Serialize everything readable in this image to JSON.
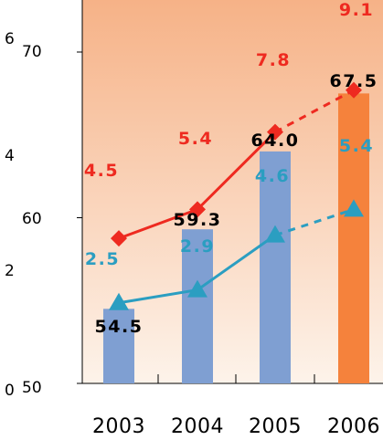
{
  "chart_data": {
    "type": "bar",
    "categories": [
      "2003",
      "2004",
      "2005",
      "2006"
    ],
    "bars": {
      "values": [
        54.5,
        59.3,
        64.0,
        67.5
      ],
      "labels": [
        "54.5",
        "59.3",
        "64.0",
        "67.5"
      ],
      "colors": [
        "#7f9fd2",
        "#7f9fd2",
        "#7f9fd2",
        "#f5823c"
      ],
      "axis": "left",
      "ylim": [
        50,
        70
      ],
      "ticks": [
        "50",
        "60",
        "70"
      ]
    },
    "lines": [
      {
        "values": [
          4.5,
          5.4,
          7.8,
          9.1
        ],
        "labels": [
          "4.5",
          "5.4",
          "7.8",
          "9.1"
        ],
        "color": "#ee2a20",
        "marker": "diamond",
        "dashed_last_segment": true,
        "axis": "right"
      },
      {
        "values": [
          2.5,
          2.9,
          4.6,
          5.4
        ],
        "labels": [
          "2.5",
          "2.9",
          "4.6",
          "5.4"
        ],
        "color": "#2b9ec1",
        "marker": "triangle",
        "dashed_last_segment": true,
        "axis": "right"
      }
    ],
    "secondary_axis": {
      "ticks": [
        "0",
        "2",
        "4",
        "6"
      ]
    },
    "background_gradient": [
      "#f6b287",
      "#fdf3ea"
    ],
    "grid": false,
    "legend": "none"
  }
}
